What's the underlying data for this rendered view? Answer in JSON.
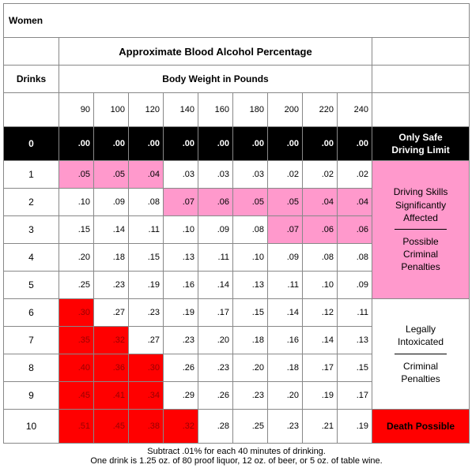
{
  "title": "Women",
  "main_header": "Approximate Blood Alcohol Percentage",
  "drinks_header": "Drinks",
  "body_weight_header": "Body Weight in Pounds",
  "weights": [
    90,
    100,
    120,
    140,
    160,
    180,
    200,
    220,
    240
  ],
  "footnote_line1": "Subtract .01% for each 40 minutes of drinking.",
  "footnote_line2": "One drink is 1.25 oz. of 80 proof liquor, 12 oz. of beer, or 5 oz. of table wine.",
  "colors": {
    "black_bg": "#000000",
    "black_fg": "#ffffff",
    "pink_bg": "#ff99cc",
    "pink_fg": "#000000",
    "white_bg": "#ffffff",
    "white_fg": "#000000",
    "red_bg": "#ff0000",
    "red_fg": "#000000",
    "red_dark": "#990000",
    "cell_border": "#888888",
    "hr_color": "#ffffff",
    "hr_color_dark": "#000000"
  },
  "rows": [
    {
      "drinks": 0,
      "cells": [
        ".00",
        ".00",
        ".00",
        ".00",
        ".00",
        ".00",
        ".00",
        ".00",
        ".00"
      ],
      "styles": [
        "black",
        "black",
        "black",
        "black",
        "black",
        "black",
        "black",
        "black",
        "black"
      ],
      "drinks_style": "black"
    },
    {
      "drinks": 1,
      "cells": [
        ".05",
        ".05",
        ".04",
        ".03",
        ".03",
        ".03",
        ".02",
        ".02",
        ".02"
      ],
      "styles": [
        "pink",
        "pink",
        "pink",
        "white",
        "white",
        "white",
        "white",
        "white",
        "white"
      ],
      "drinks_style": "white"
    },
    {
      "drinks": 2,
      "cells": [
        ".10",
        ".09",
        ".08",
        ".07",
        ".06",
        ".05",
        ".05",
        ".04",
        ".04"
      ],
      "styles": [
        "white",
        "white",
        "white",
        "pink",
        "pink",
        "pink",
        "pink",
        "pink",
        "pink"
      ],
      "drinks_style": "white"
    },
    {
      "drinks": 3,
      "cells": [
        ".15",
        ".14",
        ".11",
        ".10",
        ".09",
        ".08",
        ".07",
        ".06",
        ".06"
      ],
      "styles": [
        "white",
        "white",
        "white",
        "white",
        "white",
        "white",
        "pink",
        "pink",
        "pink"
      ],
      "drinks_style": "white"
    },
    {
      "drinks": 4,
      "cells": [
        ".20",
        ".18",
        ".15",
        ".13",
        ".11",
        ".10",
        ".09",
        ".08",
        ".08"
      ],
      "styles": [
        "white",
        "white",
        "white",
        "white",
        "white",
        "white",
        "white",
        "white",
        "white"
      ],
      "drinks_style": "white"
    },
    {
      "drinks": 5,
      "cells": [
        ".25",
        ".23",
        ".19",
        ".16",
        ".14",
        ".13",
        ".11",
        ".10",
        ".09"
      ],
      "styles": [
        "white",
        "white",
        "white",
        "white",
        "white",
        "white",
        "white",
        "white",
        "white"
      ],
      "drinks_style": "white"
    },
    {
      "drinks": 6,
      "cells": [
        ".30",
        ".27",
        ".23",
        ".19",
        ".17",
        ".15",
        ".14",
        ".12",
        ".11"
      ],
      "styles": [
        "reddark",
        "white",
        "white",
        "white",
        "white",
        "white",
        "white",
        "white",
        "white"
      ],
      "drinks_style": "white"
    },
    {
      "drinks": 7,
      "cells": [
        ".35",
        ".32",
        ".27",
        ".23",
        ".20",
        ".18",
        ".16",
        ".14",
        ".13"
      ],
      "styles": [
        "reddark",
        "reddark",
        "white",
        "white",
        "white",
        "white",
        "white",
        "white",
        "white"
      ],
      "drinks_style": "white"
    },
    {
      "drinks": 8,
      "cells": [
        ".40",
        ".36",
        ".30",
        ".26",
        ".23",
        ".20",
        ".18",
        ".17",
        ".15"
      ],
      "styles": [
        "reddark",
        "reddark",
        "reddark",
        "white",
        "white",
        "white",
        "white",
        "white",
        "white"
      ],
      "drinks_style": "white"
    },
    {
      "drinks": 9,
      "cells": [
        ".45",
        ".41",
        ".34",
        ".29",
        ".26",
        ".23",
        ".20",
        ".19",
        ".17"
      ],
      "styles": [
        "reddark",
        "reddark",
        "reddark",
        "white",
        "white",
        "white",
        "white",
        "white",
        "white"
      ],
      "drinks_style": "white"
    },
    {
      "drinks": 10,
      "cells": [
        ".51",
        ".45",
        ".38",
        ".32",
        ".28",
        ".25",
        ".23",
        ".21",
        ".19"
      ],
      "styles": [
        "reddark",
        "reddark",
        "reddark",
        "reddark",
        "white",
        "white",
        "white",
        "white",
        "white"
      ],
      "drinks_style": "white"
    }
  ],
  "categories": [
    {
      "label_html": "Only Safe<br>Driving Limit",
      "rowspan": 1,
      "style": "black",
      "hr": false
    },
    {
      "label_html": "Driving Skills<br>Significantly<br>Affected<hr>Possible<br>Criminal<br>Penalties",
      "rowspan": 5,
      "style": "pink",
      "hr": true
    },
    {
      "label_html": "Legally<br>Intoxicated<hr>Criminal<br>Penalties",
      "rowspan": 4,
      "style": "white",
      "hr": true
    },
    {
      "label_html": "Death Possible",
      "rowspan": 1,
      "style": "redbold",
      "hr": false
    }
  ]
}
